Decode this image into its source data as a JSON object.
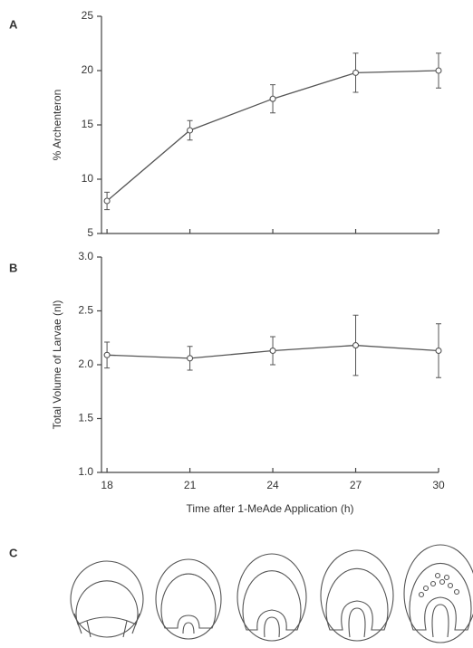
{
  "panel_labels": [
    "A",
    "B",
    "C"
  ],
  "chart_data": [
    {
      "type": "line",
      "ylabel": "% Archenteron",
      "x": [
        18,
        21,
        24,
        27,
        30
      ],
      "values": [
        8.0,
        14.5,
        17.4,
        19.8,
        20.0
      ],
      "errors": [
        0.8,
        0.9,
        1.3,
        1.8,
        1.6
      ],
      "color": "#555555",
      "xlim": [
        17.8,
        30
      ],
      "xticks": [
        18,
        21,
        24,
        27,
        30
      ],
      "ylim": [
        5,
        25
      ],
      "yticks": [
        5,
        10,
        15,
        20,
        25
      ]
    },
    {
      "type": "line",
      "ylabel": "Total Volume of Larvae (nl)",
      "xlabel": "Time after 1-MeAde Application (h)",
      "x": [
        18,
        21,
        24,
        27,
        30
      ],
      "values": [
        2.09,
        2.06,
        2.13,
        2.18,
        2.13
      ],
      "errors": [
        0.12,
        0.11,
        0.13,
        0.28,
        0.25
      ],
      "color": "#555555",
      "xlim": [
        17.8,
        30
      ],
      "xticks": [
        18,
        21,
        24,
        27,
        30
      ],
      "ylim": [
        1.0,
        3.0
      ],
      "yticks": [
        {
          "value": 1.0,
          "label": "1.0"
        },
        {
          "value": 1.5,
          "label": "1.5"
        },
        {
          "value": 2.0,
          "label": "2.0"
        },
        {
          "value": 2.5,
          "label": "2.5"
        },
        {
          "value": 3.0,
          "label": "3.0"
        }
      ]
    }
  ]
}
